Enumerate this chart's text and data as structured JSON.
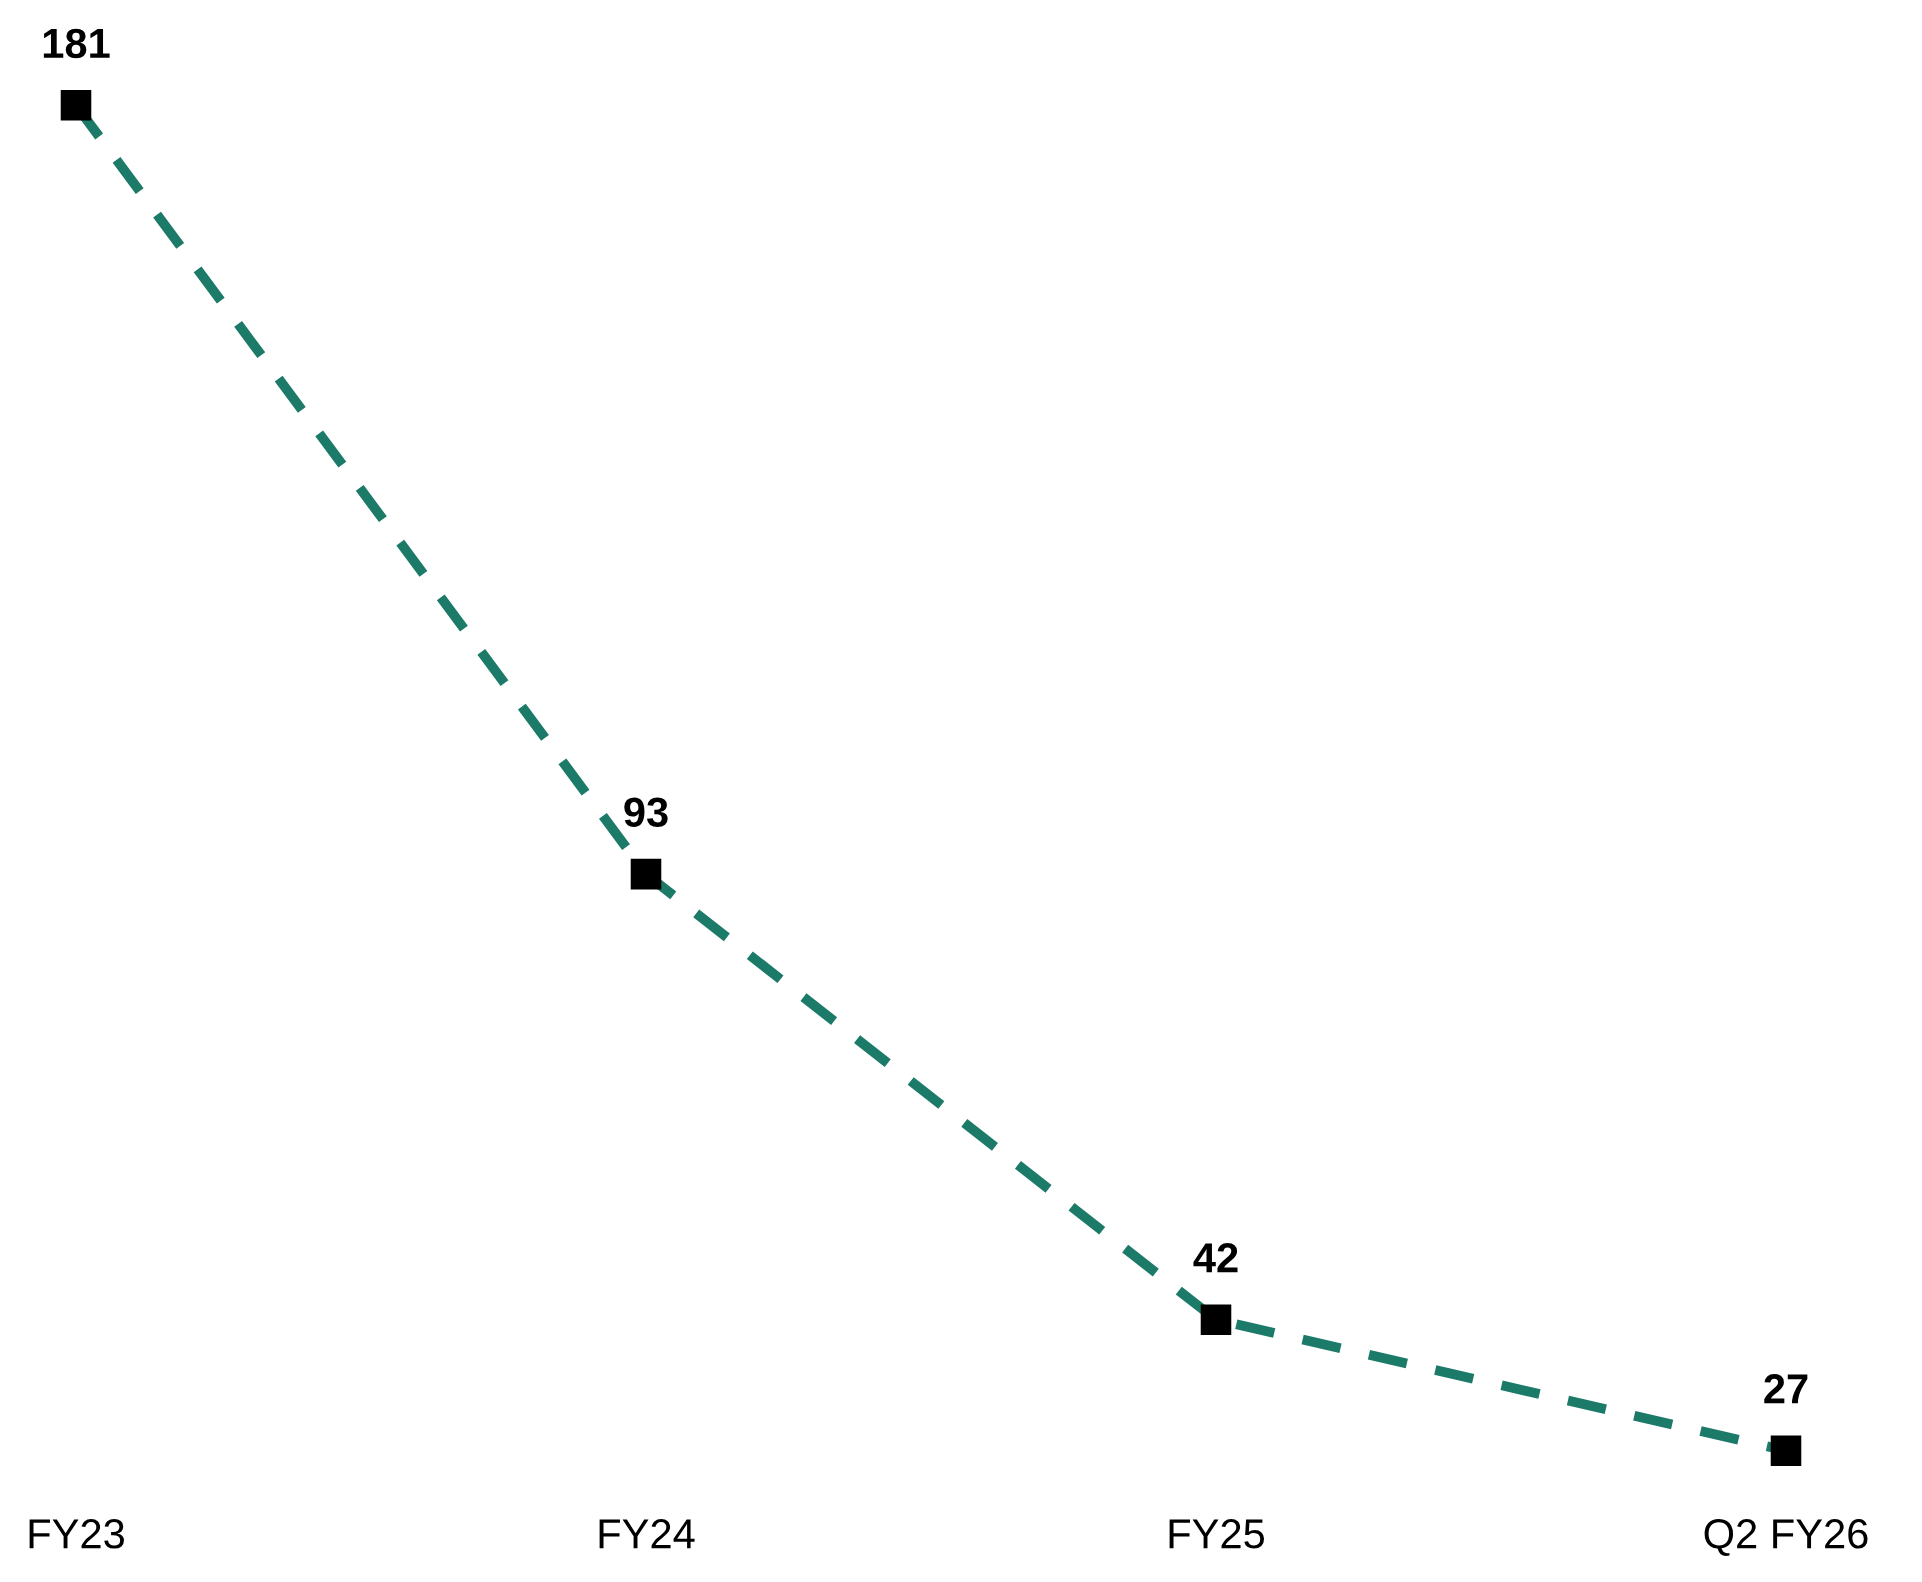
{
  "chart_data": {
    "type": "line",
    "categories": [
      "FY23",
      "FY24",
      "FY25",
      "Q2 FY26"
    ],
    "series": [
      {
        "color": "#1b7a68",
        "values": [
          181,
          93,
          42,
          27
        ]
      }
    ],
    "tick_labels": "x",
    "data_labels": true,
    "marker": "square",
    "line_style": "dashed",
    "grid": false,
    "legend": false
  }
}
